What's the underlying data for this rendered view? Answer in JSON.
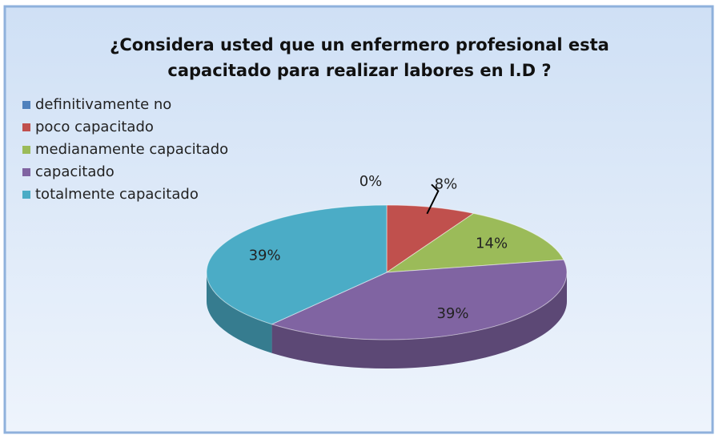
{
  "chart_data": {
    "type": "pie",
    "title": "¿Considera usted que un enfermero profesional esta capacitado para realizar labores en I.D ?",
    "categories": [
      "definitivamente no",
      "poco capacitado",
      "medianamente capacitado",
      "capacitado",
      "totalmente capacitado"
    ],
    "values": [
      0,
      8,
      14,
      39,
      39
    ],
    "value_labels": [
      "0%",
      "8%",
      "14%",
      "39%",
      "39%"
    ],
    "colors": [
      "#4f81bd",
      "#c0504d",
      "#9bbb59",
      "#8064a2",
      "#4bacc6"
    ],
    "legend": "left"
  }
}
